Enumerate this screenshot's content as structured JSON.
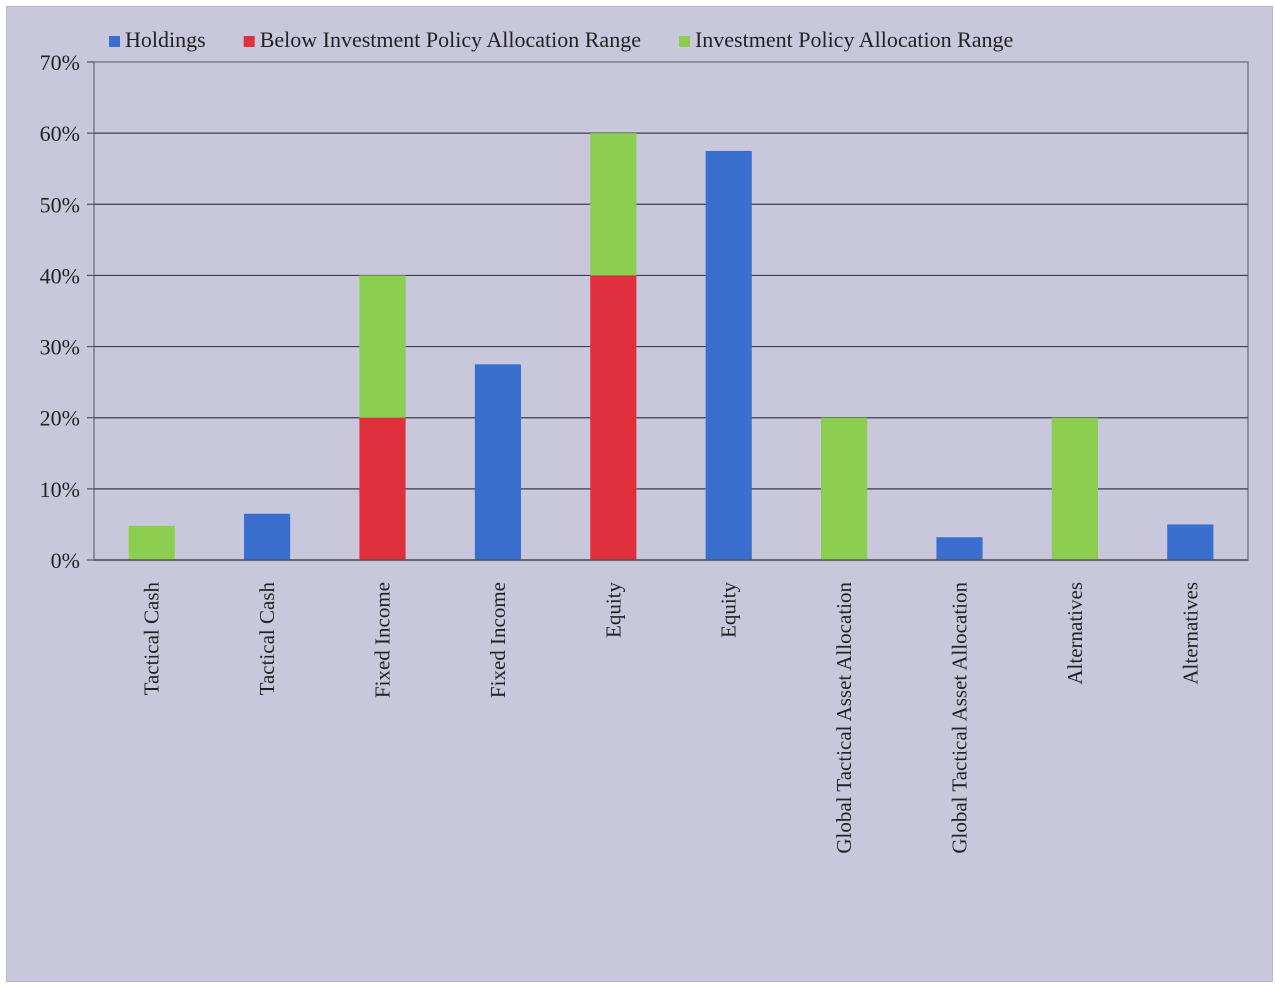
{
  "chart_data": {
    "type": "bar",
    "stacked": true,
    "categories": [
      "Tactical Cash",
      "Tactical Cash",
      "Fixed Income",
      "Fixed Income",
      "Equity",
      "Equity",
      "Global Tactical Asset Allocation",
      "Global Tactical Asset Allocation",
      "Alternatives",
      "Alternatives"
    ],
    "series": [
      {
        "name": "Holdings",
        "color": "#3a6fd0",
        "values": [
          0,
          6.5,
          0,
          27.5,
          0,
          57.5,
          0,
          3.2,
          0,
          5.0
        ]
      },
      {
        "name": "Below Investment Policy Allocation Range",
        "color": "#e0303e",
        "values": [
          0,
          0,
          20,
          0,
          40,
          0,
          0,
          0,
          0,
          0
        ]
      },
      {
        "name": "Investment Policy Allocation Range",
        "color": "#8ccf50",
        "values": [
          4.8,
          0,
          20,
          0,
          20,
          0,
          20,
          0,
          20,
          0
        ]
      }
    ],
    "ylim": [
      0,
      70
    ],
    "yticks": [
      0,
      10,
      20,
      30,
      40,
      50,
      60,
      70
    ],
    "ytick_labels": [
      "0%",
      "10%",
      "20%",
      "30%",
      "40%",
      "50%",
      "60%",
      "70%"
    ],
    "xlabel": "",
    "ylabel": "",
    "title": "",
    "grid": true,
    "legend_position": "top"
  }
}
